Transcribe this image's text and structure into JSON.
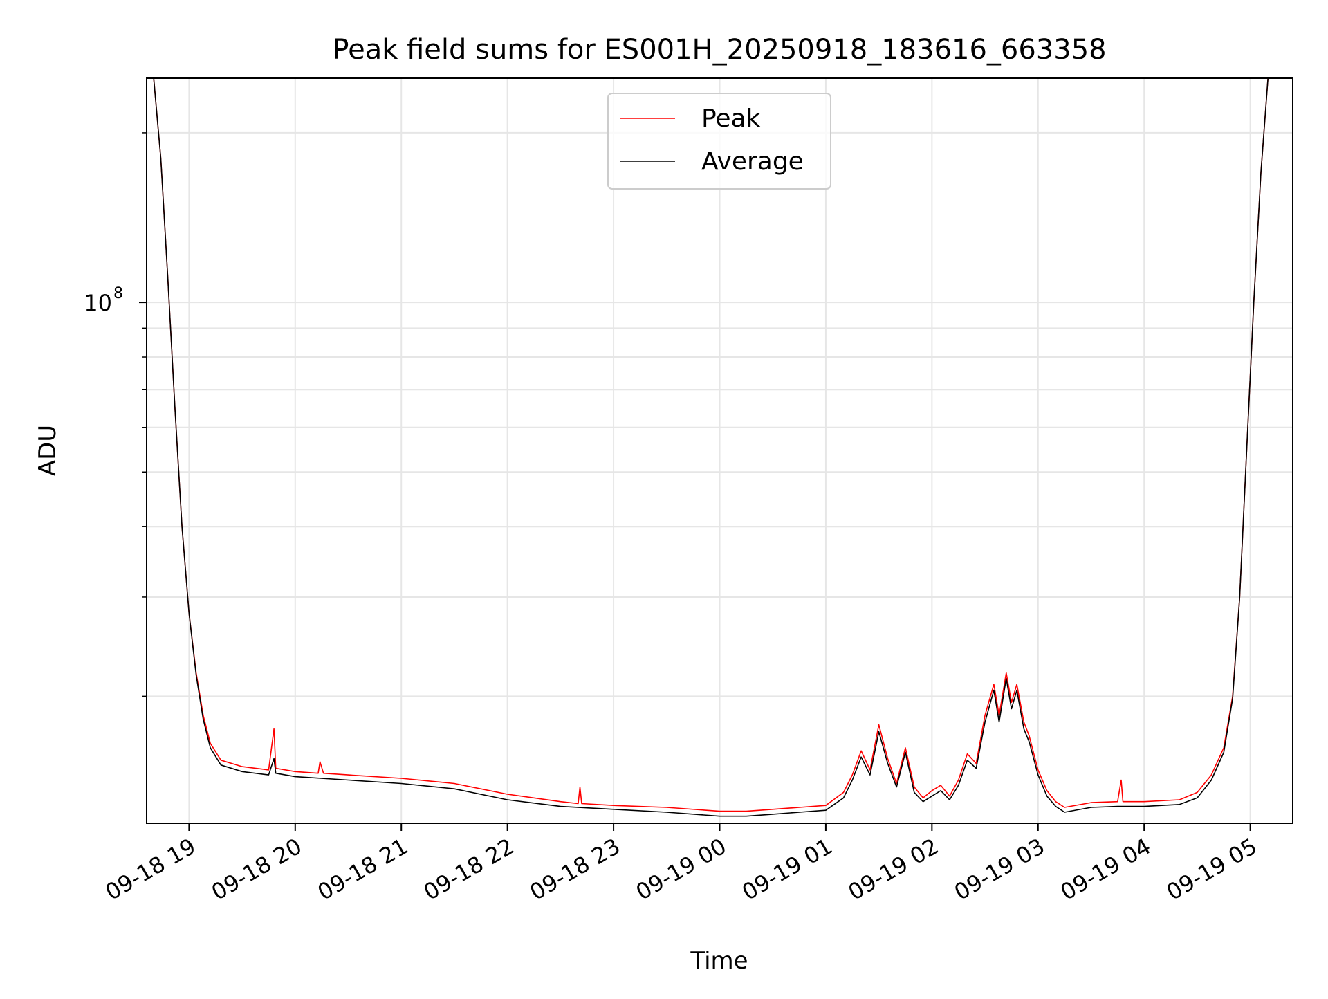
{
  "chart_data": {
    "type": "line",
    "title": "Peak field sums for ES001H_20250918_183616_663358",
    "xlabel": "Time",
    "ylabel": "ADU",
    "y_scale": "log",
    "xlim": [
      "2025-09-18 18:36",
      "2025-09-19 05:24"
    ],
    "ylim": [
      11900000,
      250000000
    ],
    "grid": true,
    "legend_position": "upper-center",
    "x_ticks": [
      {
        "t": "2025-09-18 19:00",
        "label": "09-18 19"
      },
      {
        "t": "2025-09-18 20:00",
        "label": "09-18 20"
      },
      {
        "t": "2025-09-18 21:00",
        "label": "09-18 21"
      },
      {
        "t": "2025-09-18 22:00",
        "label": "09-18 22"
      },
      {
        "t": "2025-09-18 23:00",
        "label": "09-18 23"
      },
      {
        "t": "2025-09-19 00:00",
        "label": "09-19 00"
      },
      {
        "t": "2025-09-19 01:00",
        "label": "09-19 01"
      },
      {
        "t": "2025-09-19 02:00",
        "label": "09-19 02"
      },
      {
        "t": "2025-09-19 03:00",
        "label": "09-19 03"
      },
      {
        "t": "2025-09-19 04:00",
        "label": "09-19 04"
      },
      {
        "t": "2025-09-19 05:00",
        "label": "09-19 05"
      }
    ],
    "y_major_ticks": [
      {
        "value": 100000000,
        "base": "10",
        "exp": "8"
      }
    ],
    "y_minor_ticks": [
      20000000,
      30000000,
      40000000,
      50000000,
      60000000,
      70000000,
      80000000,
      90000000,
      200000000
    ],
    "series": [
      {
        "name": "Peak",
        "color": "#ff0000",
        "points": [
          [
            "2025-09-18 18:40",
            250000000
          ],
          [
            "2025-09-18 18:44",
            180000000
          ],
          [
            "2025-09-18 18:48",
            110000000
          ],
          [
            "2025-09-18 18:52",
            65000000
          ],
          [
            "2025-09-18 18:56",
            40000000
          ],
          [
            "2025-09-18 19:00",
            28000000
          ],
          [
            "2025-09-18 19:04",
            22000000
          ],
          [
            "2025-09-18 19:08",
            18500000
          ],
          [
            "2025-09-18 19:12",
            16500000
          ],
          [
            "2025-09-18 19:18",
            15400000
          ],
          [
            "2025-09-18 19:30",
            15000000
          ],
          [
            "2025-09-18 19:45",
            14800000
          ],
          [
            "2025-09-18 19:48",
            17500000
          ],
          [
            "2025-09-18 19:49",
            14900000
          ],
          [
            "2025-09-18 20:00",
            14700000
          ],
          [
            "2025-09-18 20:13",
            14600000
          ],
          [
            "2025-09-18 20:14",
            15300000
          ],
          [
            "2025-09-18 20:16",
            14600000
          ],
          [
            "2025-09-18 20:30",
            14500000
          ],
          [
            "2025-09-18 21:00",
            14300000
          ],
          [
            "2025-09-18 21:30",
            14000000
          ],
          [
            "2025-09-18 22:00",
            13400000
          ],
          [
            "2025-09-18 22:30",
            13000000
          ],
          [
            "2025-09-18 22:40",
            12900000
          ],
          [
            "2025-09-18 22:41",
            13800000
          ],
          [
            "2025-09-18 22:42",
            12900000
          ],
          [
            "2025-09-18 23:00",
            12800000
          ],
          [
            "2025-09-18 23:30",
            12700000
          ],
          [
            "2025-09-19 00:00",
            12500000
          ],
          [
            "2025-09-19 00:15",
            12500000
          ],
          [
            "2025-09-19 00:30",
            12600000
          ],
          [
            "2025-09-19 00:45",
            12700000
          ],
          [
            "2025-09-19 01:00",
            12800000
          ],
          [
            "2025-09-19 01:10",
            13500000
          ],
          [
            "2025-09-19 01:15",
            14500000
          ],
          [
            "2025-09-19 01:20",
            16000000
          ],
          [
            "2025-09-19 01:25",
            14800000
          ],
          [
            "2025-09-19 01:30",
            17800000
          ],
          [
            "2025-09-19 01:35",
            15500000
          ],
          [
            "2025-09-19 01:40",
            14000000
          ],
          [
            "2025-09-19 01:45",
            16200000
          ],
          [
            "2025-09-19 01:50",
            13800000
          ],
          [
            "2025-09-19 01:55",
            13200000
          ],
          [
            "2025-09-19 02:00",
            13600000
          ],
          [
            "2025-09-19 02:05",
            13900000
          ],
          [
            "2025-09-19 02:10",
            13300000
          ],
          [
            "2025-09-19 02:15",
            14200000
          ],
          [
            "2025-09-19 02:20",
            15800000
          ],
          [
            "2025-09-19 02:25",
            15200000
          ],
          [
            "2025-09-19 02:30",
            18500000
          ],
          [
            "2025-09-19 02:35",
            21000000
          ],
          [
            "2025-09-19 02:38",
            18500000
          ],
          [
            "2025-09-19 02:42",
            22000000
          ],
          [
            "2025-09-19 02:45",
            19500000
          ],
          [
            "2025-09-19 02:48",
            21000000
          ],
          [
            "2025-09-19 02:52",
            18000000
          ],
          [
            "2025-09-19 02:55",
            17000000
          ],
          [
            "2025-09-19 03:00",
            14800000
          ],
          [
            "2025-09-19 03:05",
            13600000
          ],
          [
            "2025-09-19 03:10",
            13000000
          ],
          [
            "2025-09-19 03:15",
            12700000
          ],
          [
            "2025-09-19 03:30",
            12950000
          ],
          [
            "2025-09-19 03:45",
            13000000
          ],
          [
            "2025-09-19 03:47",
            14200000
          ],
          [
            "2025-09-19 03:48",
            13000000
          ],
          [
            "2025-09-19 04:00",
            13000000
          ],
          [
            "2025-09-19 04:20",
            13100000
          ],
          [
            "2025-09-19 04:30",
            13500000
          ],
          [
            "2025-09-19 04:38",
            14500000
          ],
          [
            "2025-09-19 04:45",
            16200000
          ],
          [
            "2025-09-19 04:50",
            20000000
          ],
          [
            "2025-09-19 04:54",
            30000000
          ],
          [
            "2025-09-19 04:58",
            55000000
          ],
          [
            "2025-09-19 05:02",
            100000000
          ],
          [
            "2025-09-19 05:06",
            170000000
          ],
          [
            "2025-09-19 05:10",
            250000000
          ]
        ]
      },
      {
        "name": "Average",
        "color": "#000000",
        "points": [
          [
            "2025-09-18 18:40",
            250000000
          ],
          [
            "2025-09-18 18:44",
            180000000
          ],
          [
            "2025-09-18 18:48",
            110000000
          ],
          [
            "2025-09-18 18:52",
            65000000
          ],
          [
            "2025-09-18 18:56",
            40000000
          ],
          [
            "2025-09-18 19:00",
            28000000
          ],
          [
            "2025-09-18 19:04",
            21800000
          ],
          [
            "2025-09-18 19:08",
            18200000
          ],
          [
            "2025-09-18 19:12",
            16200000
          ],
          [
            "2025-09-18 19:18",
            15100000
          ],
          [
            "2025-09-18 19:30",
            14700000
          ],
          [
            "2025-09-18 19:45",
            14500000
          ],
          [
            "2025-09-18 19:48",
            15500000
          ],
          [
            "2025-09-18 19:49",
            14600000
          ],
          [
            "2025-09-18 20:00",
            14400000
          ],
          [
            "2025-09-18 20:30",
            14200000
          ],
          [
            "2025-09-18 21:00",
            14000000
          ],
          [
            "2025-09-18 21:30",
            13700000
          ],
          [
            "2025-09-18 22:00",
            13100000
          ],
          [
            "2025-09-18 22:30",
            12750000
          ],
          [
            "2025-09-18 23:00",
            12600000
          ],
          [
            "2025-09-18 23:30",
            12450000
          ],
          [
            "2025-09-19 00:00",
            12250000
          ],
          [
            "2025-09-19 00:15",
            12250000
          ],
          [
            "2025-09-19 00:30",
            12350000
          ],
          [
            "2025-09-19 00:45",
            12450000
          ],
          [
            "2025-09-19 01:00",
            12550000
          ],
          [
            "2025-09-19 01:10",
            13200000
          ],
          [
            "2025-09-19 01:15",
            14200000
          ],
          [
            "2025-09-19 01:20",
            15600000
          ],
          [
            "2025-09-19 01:25",
            14500000
          ],
          [
            "2025-09-19 01:30",
            17300000
          ],
          [
            "2025-09-19 01:35",
            15200000
          ],
          [
            "2025-09-19 01:40",
            13800000
          ],
          [
            "2025-09-19 01:45",
            15900000
          ],
          [
            "2025-09-19 01:50",
            13500000
          ],
          [
            "2025-09-19 01:55",
            13000000
          ],
          [
            "2025-09-19 02:00",
            13300000
          ],
          [
            "2025-09-19 02:05",
            13600000
          ],
          [
            "2025-09-19 02:10",
            13100000
          ],
          [
            "2025-09-19 02:15",
            13900000
          ],
          [
            "2025-09-19 02:20",
            15400000
          ],
          [
            "2025-09-19 02:25",
            14900000
          ],
          [
            "2025-09-19 02:30",
            18000000
          ],
          [
            "2025-09-19 02:35",
            20500000
          ],
          [
            "2025-09-19 02:38",
            18000000
          ],
          [
            "2025-09-19 02:42",
            21500000
          ],
          [
            "2025-09-19 02:45",
            19000000
          ],
          [
            "2025-09-19 02:48",
            20500000
          ],
          [
            "2025-09-19 02:52",
            17500000
          ],
          [
            "2025-09-19 02:55",
            16600000
          ],
          [
            "2025-09-19 03:00",
            14500000
          ],
          [
            "2025-09-19 03:05",
            13300000
          ],
          [
            "2025-09-19 03:10",
            12750000
          ],
          [
            "2025-09-19 03:15",
            12450000
          ],
          [
            "2025-09-19 03:30",
            12700000
          ],
          [
            "2025-09-19 03:45",
            12750000
          ],
          [
            "2025-09-19 04:00",
            12750000
          ],
          [
            "2025-09-19 04:20",
            12850000
          ],
          [
            "2025-09-19 04:30",
            13200000
          ],
          [
            "2025-09-19 04:38",
            14200000
          ],
          [
            "2025-09-19 04:45",
            15900000
          ],
          [
            "2025-09-19 04:50",
            19800000
          ],
          [
            "2025-09-19 04:54",
            30000000
          ],
          [
            "2025-09-19 04:58",
            55000000
          ],
          [
            "2025-09-19 05:02",
            100000000
          ],
          [
            "2025-09-19 05:06",
            170000000
          ],
          [
            "2025-09-19 05:10",
            250000000
          ]
        ]
      }
    ]
  }
}
